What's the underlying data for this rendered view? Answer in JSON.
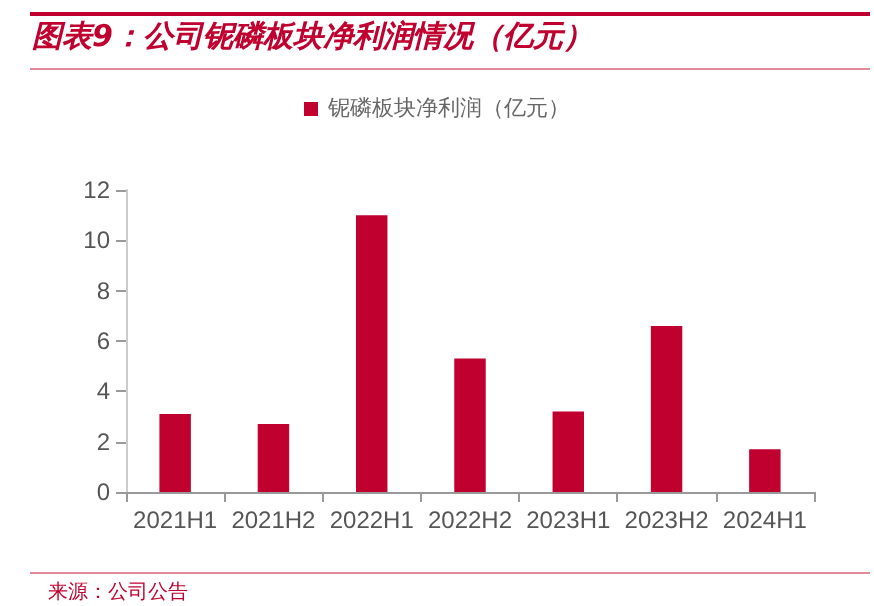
{
  "chart_data": {
    "type": "bar",
    "title": "图表9：公司铌磷板块净利润情况（亿元）",
    "categories": [
      "2021H1",
      "2021H2",
      "2022H1",
      "2022H2",
      "2023H1",
      "2023H2",
      "2024H1"
    ],
    "series": [
      {
        "name": "铌磷板块净利润（亿元）",
        "color": "#c0002e",
        "values": [
          3.1,
          2.7,
          11.0,
          5.3,
          3.2,
          6.6,
          1.7
        ]
      }
    ],
    "ylim": [
      0,
      12
    ],
    "yticks": [
      0,
      2,
      4,
      6,
      8,
      10,
      12
    ],
    "grid": false,
    "legend": "top",
    "annotations": [
      "来源：公司公告"
    ]
  }
}
